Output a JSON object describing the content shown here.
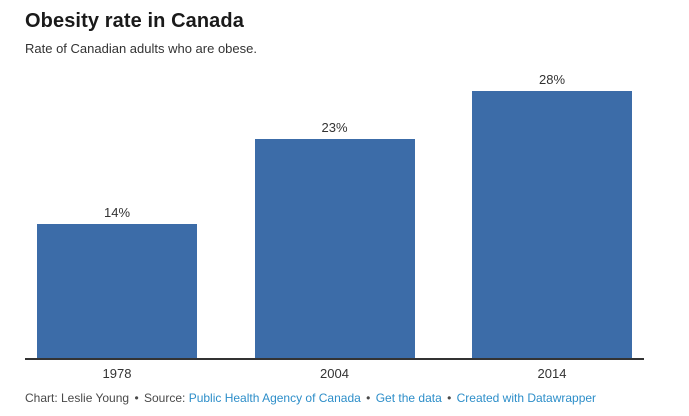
{
  "header": {
    "title": "Obesity rate in Canada",
    "subtitle": "Rate of Canadian adults who are obese."
  },
  "chart_data": {
    "type": "bar",
    "title": "Obesity rate in Canada",
    "subtitle": "Rate of Canadian adults who are obese.",
    "categories": [
      "1978",
      "2004",
      "2014"
    ],
    "values": [
      14,
      23,
      28
    ],
    "value_labels": [
      "14%",
      "23%",
      "28%"
    ],
    "xlabel": "",
    "ylabel": "",
    "ylim": [
      0,
      28
    ],
    "grid": false,
    "legend": false,
    "bar_color": "#3c6ca8",
    "axis_line_color": "#333333"
  },
  "footer": {
    "credit": "Chart: Leslie Young",
    "separator": "•",
    "source_label": "Source:",
    "links": [
      {
        "label": "Public Health Agency of Canada"
      },
      {
        "label": "Get the data"
      },
      {
        "label": "Created with Datawrapper"
      }
    ],
    "link_color": "#2d8ec9",
    "text_color": "#494949"
  }
}
